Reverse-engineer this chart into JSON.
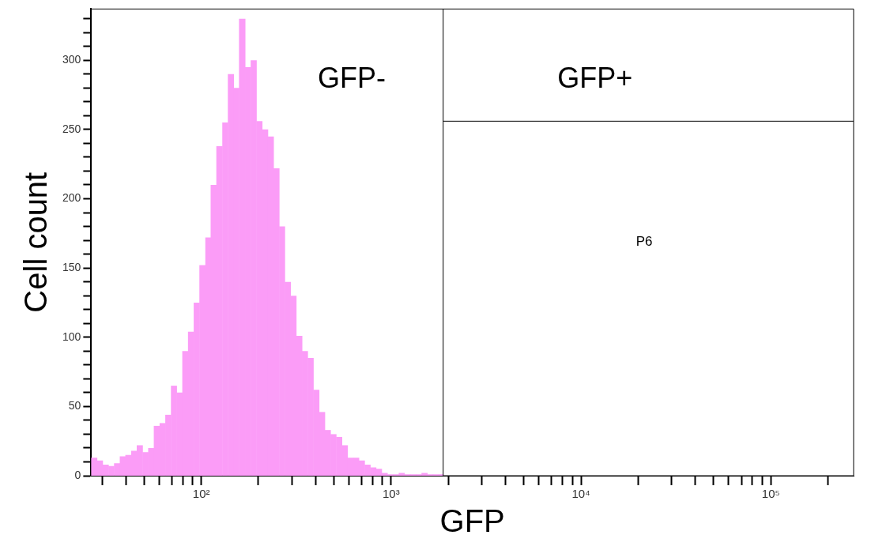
{
  "chart_data": {
    "type": "histogram",
    "xlabel": "GFP",
    "ylabel": "Cell count",
    "bins": [
      26.3,
      28.2,
      30.2,
      32.4,
      34.7,
      37.2,
      39.8,
      42.7,
      45.7,
      49.0,
      52.5,
      56.2,
      60.3,
      64.6,
      69.2,
      74.1,
      79.4,
      85.1,
      91.2,
      97.7,
      105,
      112,
      120,
      129,
      138,
      148,
      158,
      170,
      182,
      195,
      209,
      224,
      240,
      257,
      275,
      295,
      316,
      339,
      363,
      389,
      417,
      447,
      479,
      513,
      550,
      589,
      631,
      676,
      724,
      776,
      832,
      891,
      955,
      1023,
      1096,
      1175,
      1259,
      1349,
      1445,
      1549,
      1660,
      1778,
      1880
    ],
    "values": [
      13,
      11,
      8,
      7,
      9,
      14,
      15,
      18,
      22,
      17,
      20,
      36,
      38,
      44,
      65,
      60,
      90,
      104,
      125,
      152,
      172,
      210,
      238,
      255,
      290,
      280,
      330,
      295,
      300,
      256,
      250,
      245,
      222,
      180,
      140,
      130,
      101,
      90,
      85,
      62,
      46,
      33,
      30,
      28,
      22,
      13,
      13,
      11,
      8,
      6,
      5,
      2,
      1,
      1,
      2,
      1,
      1,
      1,
      2,
      1,
      1,
      1
    ],
    "color": "#fb9cf7",
    "log": "x",
    "xlim": [
      26.3,
      273000
    ],
    "ylim": [
      0,
      337
    ],
    "xticks": [
      {
        "value": 30,
        "label": null
      },
      {
        "value": 40,
        "label": null
      },
      {
        "value": 50,
        "label": null
      },
      {
        "value": 60,
        "label": null
      },
      {
        "value": 70,
        "label": null
      },
      {
        "value": 80,
        "label": null
      },
      {
        "value": 90,
        "label": null
      },
      {
        "value": 100,
        "label": "10²"
      },
      {
        "value": 200,
        "label": null
      },
      {
        "value": 300,
        "label": null
      },
      {
        "value": 400,
        "label": null
      },
      {
        "value": 500,
        "label": null
      },
      {
        "value": 600,
        "label": null
      },
      {
        "value": 700,
        "label": null
      },
      {
        "value": 800,
        "label": null
      },
      {
        "value": 900,
        "label": null
      },
      {
        "value": 1000,
        "label": "10³"
      },
      {
        "value": 2000,
        "label": null
      },
      {
        "value": 3000,
        "label": null
      },
      {
        "value": 4000,
        "label": null
      },
      {
        "value": 5000,
        "label": null
      },
      {
        "value": 6000,
        "label": null
      },
      {
        "value": 7000,
        "label": null
      },
      {
        "value": 8000,
        "label": null
      },
      {
        "value": 9000,
        "label": null
      },
      {
        "value": 10000,
        "label": "10⁴"
      },
      {
        "value": 20000,
        "label": null
      },
      {
        "value": 30000,
        "label": null
      },
      {
        "value": 40000,
        "label": null
      },
      {
        "value": 50000,
        "label": null
      },
      {
        "value": 60000,
        "label": null
      },
      {
        "value": 70000,
        "label": null
      },
      {
        "value": 80000,
        "label": null
      },
      {
        "value": 90000,
        "label": null
      },
      {
        "value": 100000,
        "label": "10⁵"
      },
      {
        "value": 200000,
        "label": null
      }
    ],
    "yticks": [
      0,
      {
        "value": 10,
        "label": null
      },
      {
        "value": 20,
        "label": null
      },
      {
        "value": 30,
        "label": null
      },
      {
        "value": 40,
        "label": null
      },
      50,
      {
        "value": 60,
        "label": null
      },
      {
        "value": 70,
        "label": null
      },
      {
        "value": 80,
        "label": null
      },
      {
        "value": 90,
        "label": null
      },
      100,
      {
        "value": 110,
        "label": null
      },
      {
        "value": 120,
        "label": null
      },
      {
        "value": 130,
        "label": null
      },
      {
        "value": 140,
        "label": null
      },
      150,
      {
        "value": 160,
        "label": null
      },
      {
        "value": 170,
        "label": null
      },
      {
        "value": 180,
        "label": null
      },
      {
        "value": 190,
        "label": null
      },
      200,
      {
        "value": 210,
        "label": null
      },
      {
        "value": 220,
        "label": null
      },
      {
        "value": 230,
        "label": null
      },
      {
        "value": 240,
        "label": null
      },
      250,
      {
        "value": 260,
        "label": null
      },
      {
        "value": 270,
        "label": null
      },
      {
        "value": 280,
        "label": null
      },
      {
        "value": 290,
        "label": null
      },
      300,
      {
        "value": 310,
        "label": null
      },
      {
        "value": 320,
        "label": null
      },
      {
        "value": 330,
        "label": null
      }
    ],
    "grid": false,
    "legend": false,
    "ref_lines": [
      {
        "axis": "x",
        "value": 1880
      },
      {
        "axis": "y",
        "value": 256
      }
    ],
    "annotations": [
      "GFP-",
      "GFP+",
      "P6"
    ]
  }
}
